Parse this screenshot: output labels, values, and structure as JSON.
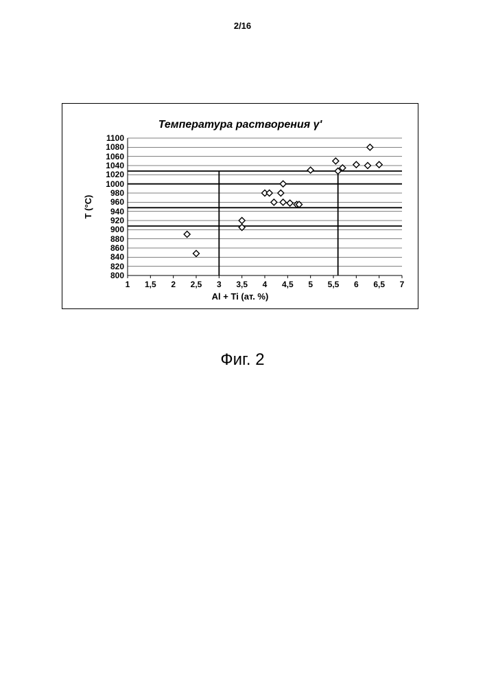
{
  "page_number": "2/16",
  "figure_caption": "Фиг. 2",
  "chart": {
    "type": "scatter",
    "title": "Температура растворения γ'",
    "title_fontsize": 16,
    "xlabel": "Al + Ti (ат. %)",
    "ylabel": "T (°C)",
    "label_fontsize": 13,
    "background_color": "#ffffff",
    "xlim": [
      1,
      7
    ],
    "ylim": [
      800,
      1100
    ],
    "ytick_step": 20,
    "xtick_step": 0.5,
    "xticks": [
      1,
      1.5,
      2,
      2.5,
      3,
      3.5,
      4,
      4.5,
      5,
      5.5,
      6,
      6.5,
      7
    ],
    "xtick_labels": [
      "1",
      "1,5",
      "2",
      "2,5",
      "3",
      "3,5",
      "4",
      "4,5",
      "5",
      "5,5",
      "6",
      "6,5",
      "7"
    ],
    "yticks": [
      800,
      820,
      840,
      860,
      880,
      900,
      920,
      940,
      960,
      980,
      1000,
      1020,
      1040,
      1060,
      1080,
      1100
    ],
    "ytick_labels": [
      "800",
      "820",
      "840",
      "860",
      "880",
      "900",
      "920",
      "940",
      "960",
      "980",
      "1000",
      "1020",
      "1040",
      "1060",
      "1080",
      "1100"
    ],
    "gridline_color": "#000000",
    "gridline_width": 0.5,
    "heavy_hlines_y": [
      908,
      948,
      1000,
      1028
    ],
    "heavy_vlines_x": [
      3.0,
      5.6
    ],
    "heavy_line_color": "#000000",
    "heavy_line_width": 1.8,
    "points": [
      {
        "x": 2.3,
        "y": 890
      },
      {
        "x": 2.5,
        "y": 848
      },
      {
        "x": 3.5,
        "y": 920
      },
      {
        "x": 3.5,
        "y": 905
      },
      {
        "x": 4.0,
        "y": 980
      },
      {
        "x": 4.1,
        "y": 980
      },
      {
        "x": 4.2,
        "y": 960
      },
      {
        "x": 4.35,
        "y": 980
      },
      {
        "x": 4.4,
        "y": 960
      },
      {
        "x": 4.4,
        "y": 1000
      },
      {
        "x": 4.55,
        "y": 958
      },
      {
        "x": 4.7,
        "y": 955
      },
      {
        "x": 4.75,
        "y": 955
      },
      {
        "x": 5.0,
        "y": 1030
      },
      {
        "x": 5.55,
        "y": 1050
      },
      {
        "x": 5.6,
        "y": 1028
      },
      {
        "x": 5.7,
        "y": 1035
      },
      {
        "x": 6.0,
        "y": 1042
      },
      {
        "x": 6.25,
        "y": 1040
      },
      {
        "x": 6.3,
        "y": 1080
      },
      {
        "x": 6.5,
        "y": 1042
      }
    ],
    "marker": {
      "shape": "diamond",
      "size": 9,
      "fill": "#ffffff",
      "stroke": "#000000",
      "stroke_width": 1.4
    }
  }
}
